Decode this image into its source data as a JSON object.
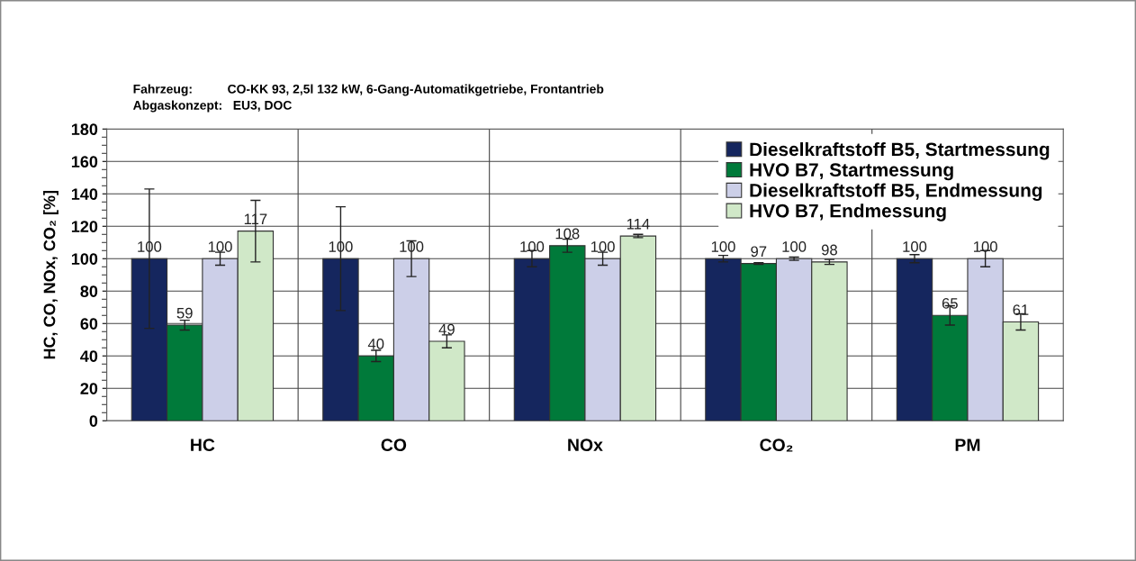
{
  "chart_data": {
    "type": "bar",
    "subtitle": "Fahrzeug:          CO-KK 93, 2,5l 132 kW, 6-Gang-Automatikgetriebe, Frontantrieb\nAbgaskonzept:   EU3, DOC",
    "ylabel": "HC, CO, NOx, CO₂ [%]",
    "categories": [
      "HC",
      "CO",
      "NOx",
      "CO₂",
      "PM"
    ],
    "series": [
      {
        "name": "Dieselkraftstoff B5, Startmessung",
        "color": "#15265e",
        "values": [
          100,
          100,
          100,
          100,
          100
        ],
        "errors": [
          43,
          32,
          5,
          2,
          2.5
        ]
      },
      {
        "name": "HVO B7, Startmessung",
        "color": "#007a3a",
        "values": [
          59,
          40,
          108,
          97,
          65
        ],
        "errors": [
          3,
          3.5,
          4,
          0.5,
          6
        ]
      },
      {
        "name": "Dieselkraftstoff B5, Endmessung",
        "color": "#cccfe8",
        "values": [
          100,
          100,
          100,
          100,
          100
        ],
        "errors": [
          4,
          11,
          4,
          1,
          5
        ]
      },
      {
        "name": "HVO B7, Endmessung",
        "color": "#d0e8c8",
        "values": [
          117,
          49,
          114,
          98,
          61
        ],
        "errors": [
          19,
          4,
          1,
          1.5,
          5
        ]
      }
    ],
    "ylim": [
      0,
      180
    ],
    "yticks": [
      0,
      20,
      40,
      60,
      80,
      100,
      120,
      140,
      160,
      180
    ],
    "data_labels": true,
    "grid": true,
    "legend": "top right"
  }
}
